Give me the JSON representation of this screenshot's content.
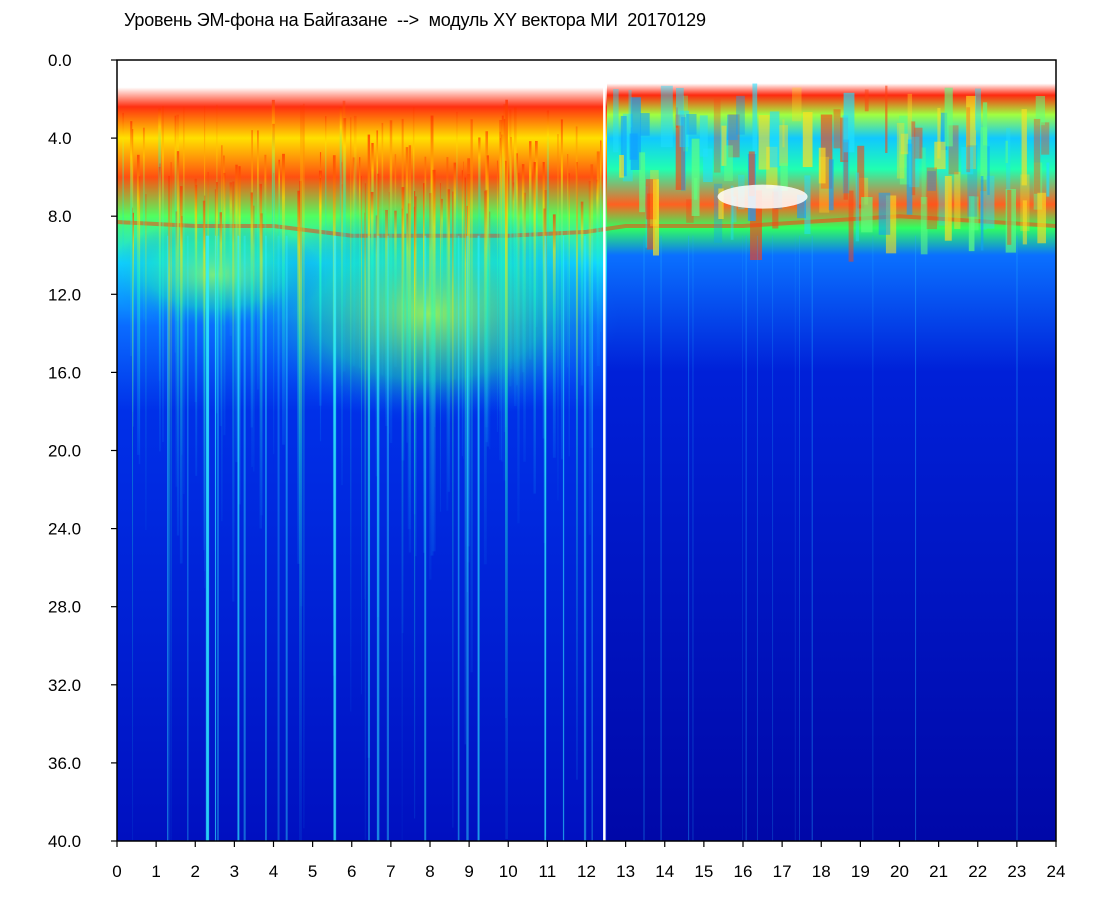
{
  "chart_data": {
    "type": "heatmap",
    "title": "Уровень ЭМ-фона на Байгазане  -->  модуль XY вектора МИ  20170129",
    "xlabel": "",
    "ylabel": "",
    "x_ticks": [
      "0",
      "1",
      "2",
      "3",
      "4",
      "5",
      "6",
      "7",
      "8",
      "9",
      "10",
      "11",
      "12",
      "13",
      "14",
      "15",
      "16",
      "17",
      "18",
      "19",
      "20",
      "21",
      "22",
      "23",
      "24"
    ],
    "y_ticks": [
      "0.0",
      "4.0",
      "8.0",
      "12.0",
      "16.0",
      "20.0",
      "24.0",
      "28.0",
      "32.0",
      "36.0",
      "40.0"
    ],
    "xlim": [
      0,
      24
    ],
    "ylim": [
      0,
      40
    ],
    "y_axis_inverted": true,
    "grid": false,
    "colorscale": [
      "#0008b0",
      "#0033ff",
      "#00c8ff",
      "#10ff80",
      "#ffff00",
      "#ff2000",
      "#ffffff"
    ],
    "gaps_at_hours": [
      12.45
    ],
    "upper_band_depth": [
      {
        "x": 0,
        "value": 8.3
      },
      {
        "x": 2,
        "value": 8.5
      },
      {
        "x": 4,
        "value": 8.5
      },
      {
        "x": 6,
        "value": 9.0
      },
      {
        "x": 8,
        "value": 9.0
      },
      {
        "x": 10,
        "value": 9.0
      },
      {
        "x": 12,
        "value": 8.8
      },
      {
        "x": 13,
        "value": 8.5
      },
      {
        "x": 16,
        "value": 8.5
      },
      {
        "x": 20,
        "value": 8.0
      },
      {
        "x": 24,
        "value": 8.5
      }
    ]
  }
}
